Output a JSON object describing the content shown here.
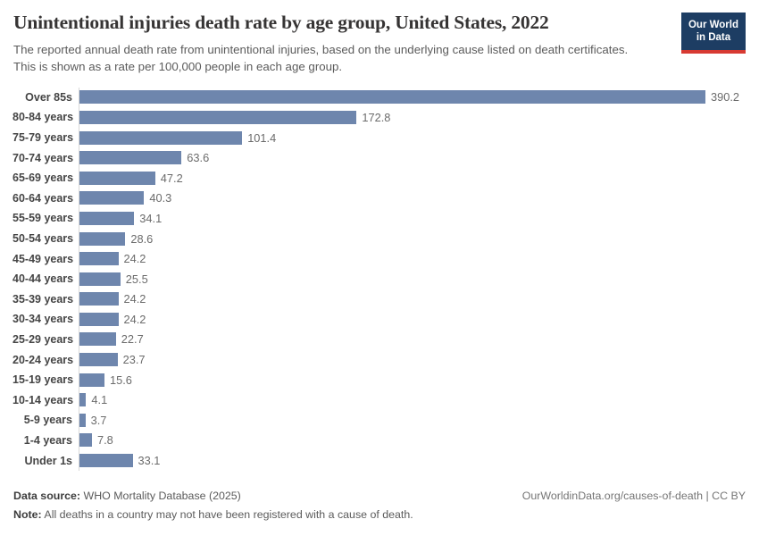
{
  "header": {
    "title": "Unintentional injuries death rate by age group, United States, 2022",
    "subtitle": "The reported annual death rate from unintentional injuries, based on the underlying cause listed on death certificates. This is shown as a rate per 100,000 people in each age group.",
    "logo": {
      "line1": "Our World",
      "line2": "in Data"
    }
  },
  "chart_data": {
    "type": "bar",
    "orientation": "horizontal",
    "categories": [
      "Over 85s",
      "80-84 years",
      "75-79 years",
      "70-74 years",
      "65-69 years",
      "60-64 years",
      "55-59 years",
      "50-54 years",
      "45-49 years",
      "40-44 years",
      "35-39 years",
      "30-34 years",
      "25-29 years",
      "20-24 years",
      "15-19 years",
      "10-14 years",
      "5-9 years",
      "1-4 years",
      "Under 1s"
    ],
    "values": [
      390.2,
      172.8,
      101.4,
      63.6,
      47.2,
      40.3,
      34.1,
      28.6,
      24.2,
      25.5,
      24.2,
      24.2,
      22.7,
      23.7,
      15.6,
      4.1,
      3.7,
      7.8,
      33.1
    ],
    "title": "Unintentional injuries death rate by age group, United States, 2022",
    "xlabel": "",
    "ylabel": "",
    "xlim": [
      0,
      420
    ],
    "value_labels": true,
    "grid": false,
    "legend": false
  },
  "colors": {
    "bar": "#6e86ad",
    "logo_background": "#1d3d63",
    "logo_stripe": "#d73a32",
    "axis": "#d9d9d9"
  },
  "footer": {
    "source_label": "Data source:",
    "source_value": " WHO Mortality Database (2025)",
    "attribution": "OurWorldinData.org/causes-of-death | CC BY",
    "note_label": "Note:",
    "note_value": " All deaths in a country may not have been registered with a cause of death."
  }
}
